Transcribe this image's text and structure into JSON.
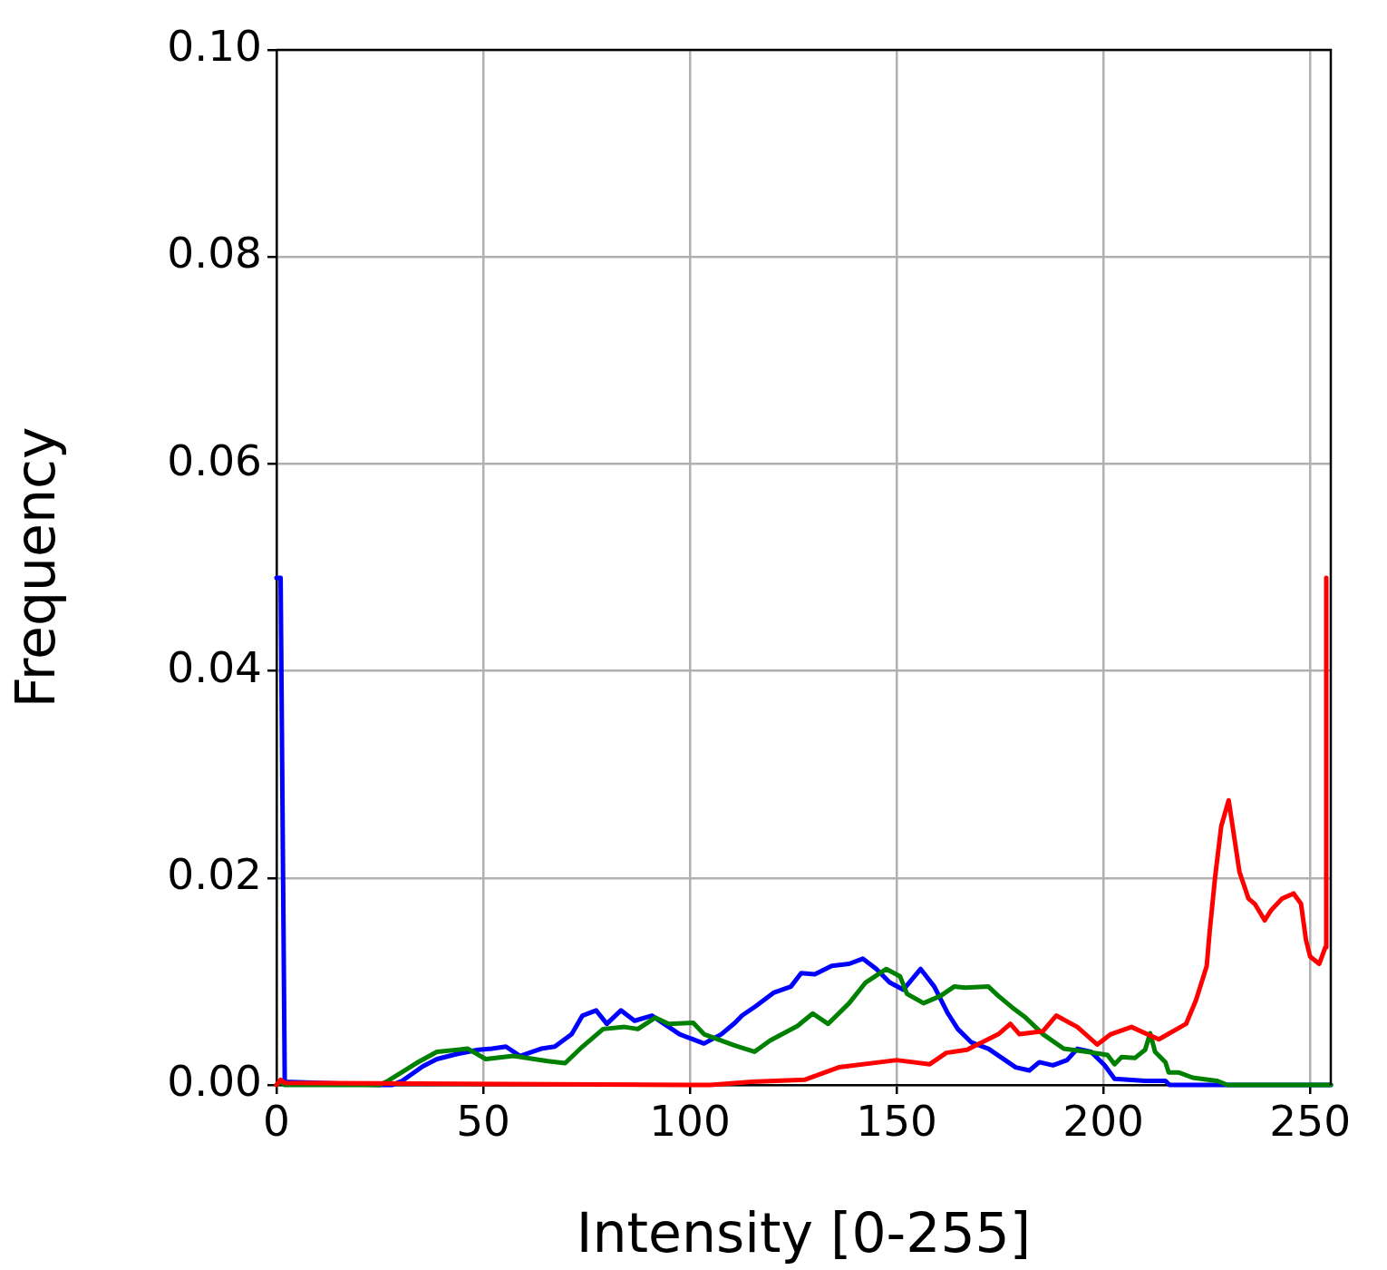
{
  "chart_data": {
    "type": "line",
    "xlabel": "Intensity [0-255]",
    "ylabel": "Frequency",
    "xlim": [
      0,
      255
    ],
    "xticks": [
      0,
      50,
      100,
      150,
      200,
      250
    ],
    "ylim": [
      0,
      0.1
    ],
    "yticks": [
      {
        "value": 0,
        "label": "0.00"
      },
      {
        "value": 0.02,
        "label": "0.02"
      },
      {
        "value": 0.04,
        "label": "0.04"
      },
      {
        "value": 0.06,
        "label": "0.06"
      },
      {
        "value": 0.08,
        "label": "0.08"
      },
      {
        "value": 0.1,
        "label": "0.10"
      }
    ],
    "grid": true,
    "legend": false,
    "marker": "none",
    "line_style": "solid",
    "series": [
      {
        "color": "#ff0000",
        "x": [
          0,
          1,
          2,
          105,
          115,
          127.7,
          136,
          150,
          158,
          162,
          167,
          174.6,
          177.5,
          179.7,
          185.4,
          188.6,
          193.7,
          198.5,
          201.8,
          206.8,
          213.4,
          220,
          222.4,
          225,
          225.7,
          227,
          228.5,
          230.3,
          232.9,
          235.1,
          236.6,
          239,
          240.6,
          243.2,
          246,
          247.8,
          249,
          250,
          252.2,
          253.7,
          253.9
        ],
        "values": [
          0,
          0.0005,
          0.0002,
          0,
          0.0003,
          0.0005,
          0.0017,
          0.0024,
          0.002,
          0.0031,
          0.0034,
          0.0049,
          0.0059,
          0.0049,
          0.0052,
          0.0067,
          0.0056,
          0.0039,
          0.0049,
          0.0056,
          0.0044,
          0.0059,
          0.0082,
          0.0115,
          0.0148,
          0.02,
          0.025,
          0.0275,
          0.0206,
          0.018,
          0.0175,
          0.0159,
          0.0169,
          0.018,
          0.0185,
          0.0175,
          0.014,
          0.0124,
          0.0117,
          0.0133,
          0.049
        ]
      },
      {
        "color": "#008000",
        "x": [
          0,
          1,
          2,
          25,
          27,
          33.8,
          38.8,
          46.3,
          50.6,
          57.3,
          65.6,
          69.8,
          74,
          79,
          84.2,
          87.4,
          91.6,
          94.9,
          100.8,
          103.4,
          110.9,
          115.6,
          119.4,
          126,
          129.7,
          133.4,
          138.5,
          142.5,
          147.5,
          150.8,
          152.5,
          156.5,
          160.6,
          163.9,
          166.5,
          172.2,
          174.6,
          177.9,
          181.2,
          185.4,
          190.4,
          196.1,
          201,
          202.7,
          204.4,
          207.6,
          210.1,
          211.3,
          212.5,
          215,
          215.8,
          218.3,
          221.6,
          227.4,
          230,
          255
        ],
        "values": [
          0,
          0.0003,
          0,
          0,
          0.0004,
          0.0021,
          0.0032,
          0.0035,
          0.0025,
          0.0028,
          0.0023,
          0.0021,
          0.0037,
          0.0054,
          0.0056,
          0.0054,
          0.0065,
          0.0059,
          0.006,
          0.0049,
          0.0038,
          0.0032,
          0.0043,
          0.0057,
          0.0069,
          0.0059,
          0.0079,
          0.0099,
          0.0112,
          0.0105,
          0.0088,
          0.0079,
          0.0086,
          0.0095,
          0.0094,
          0.0095,
          0.0086,
          0.0075,
          0.0065,
          0.0049,
          0.0035,
          0.0032,
          0.0029,
          0.002,
          0.0027,
          0.0026,
          0.0034,
          0.005,
          0.0032,
          0.0022,
          0.0012,
          0.0012,
          0.0007,
          0.0004,
          0,
          0
        ]
      },
      {
        "color": "#0000ff",
        "x": [
          0,
          1,
          2,
          25,
          28,
          30.4,
          35.4,
          38.8,
          43.8,
          48.8,
          52.1,
          55.5,
          58.9,
          64,
          67.3,
          71.4,
          74,
          77.3,
          79.9,
          83.3,
          86.6,
          90.8,
          97.5,
          103.4,
          107.6,
          110.9,
          112.6,
          115.9,
          120.2,
          124.4,
          126.9,
          130.2,
          134.3,
          138.5,
          141.8,
          145.1,
          148.3,
          151.6,
          155.8,
          159.1,
          162.4,
          164.8,
          168.1,
          172.2,
          175.5,
          178.8,
          182.1,
          184.5,
          187.8,
          191.2,
          193.7,
          197,
          200.3,
          202.7,
          210.1,
          215,
          216,
          255
        ],
        "values": [
          0.049,
          0.049,
          0.0003,
          0,
          0,
          0.0004,
          0.0018,
          0.0025,
          0.003,
          0.0034,
          0.0035,
          0.0037,
          0.0028,
          0.0035,
          0.0037,
          0.0049,
          0.0067,
          0.0072,
          0.0059,
          0.0072,
          0.0062,
          0.0067,
          0.0049,
          0.004,
          0.0049,
          0.006,
          0.0067,
          0.0076,
          0.0089,
          0.0095,
          0.0108,
          0.0107,
          0.0115,
          0.0117,
          0.0122,
          0.0112,
          0.0099,
          0.0092,
          0.0112,
          0.0095,
          0.0069,
          0.0054,
          0.0041,
          0.0035,
          0.0026,
          0.0017,
          0.0014,
          0.0022,
          0.0019,
          0.0024,
          0.0035,
          0.0032,
          0.0019,
          0.0006,
          0.0004,
          0.0004,
          0,
          0
        ]
      }
    ]
  }
}
